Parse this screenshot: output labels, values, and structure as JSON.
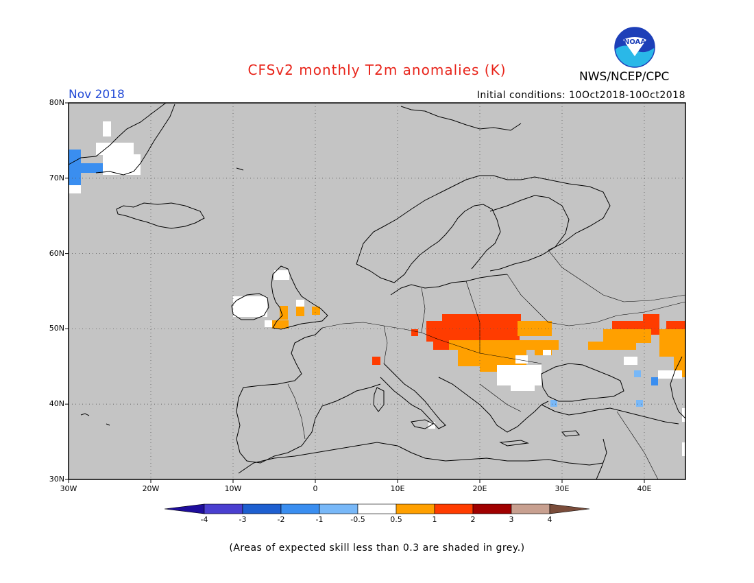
{
  "header": {
    "title": "CFSv2 monthly T2m anomalies (K)",
    "month": "Nov 2018",
    "initial_conditions": "Initial conditions: 10Oct2018-10Oct2018",
    "agency": "NWS/NCEP/CPC",
    "logo_text": "NOAA"
  },
  "map": {
    "lon_range": [
      -30,
      45
    ],
    "lat_range": [
      30,
      80
    ],
    "lat_labels": [
      "80N",
      "70N",
      "60N",
      "50N",
      "40N",
      "30N"
    ],
    "lat_values": [
      80,
      70,
      60,
      50,
      40,
      30
    ],
    "lon_labels": [
      "30W",
      "20W",
      "10W",
      "0",
      "10E",
      "20E",
      "30E",
      "40E"
    ],
    "lon_values": [
      -30,
      -20,
      -10,
      0,
      10,
      20,
      30,
      40
    ],
    "background_color": "#c4c4c4",
    "gridlines": "dotted"
  },
  "colorbar": {
    "labels": [
      "-4",
      "-3",
      "-2",
      "-1",
      "-0.5",
      "0.5",
      "1",
      "2",
      "3",
      "4"
    ],
    "colors": [
      "#1e0d9c",
      "#4a3fd0",
      "#1e5fd0",
      "#3a8ef0",
      "#78b8f8",
      "#ffffff",
      "#ffa000",
      "#ff3c00",
      "#a00000",
      "#c8a090",
      "#7a4c3a"
    ]
  },
  "footnote": "(Areas of expected skill less than 0.3 are shaded in grey.)"
}
